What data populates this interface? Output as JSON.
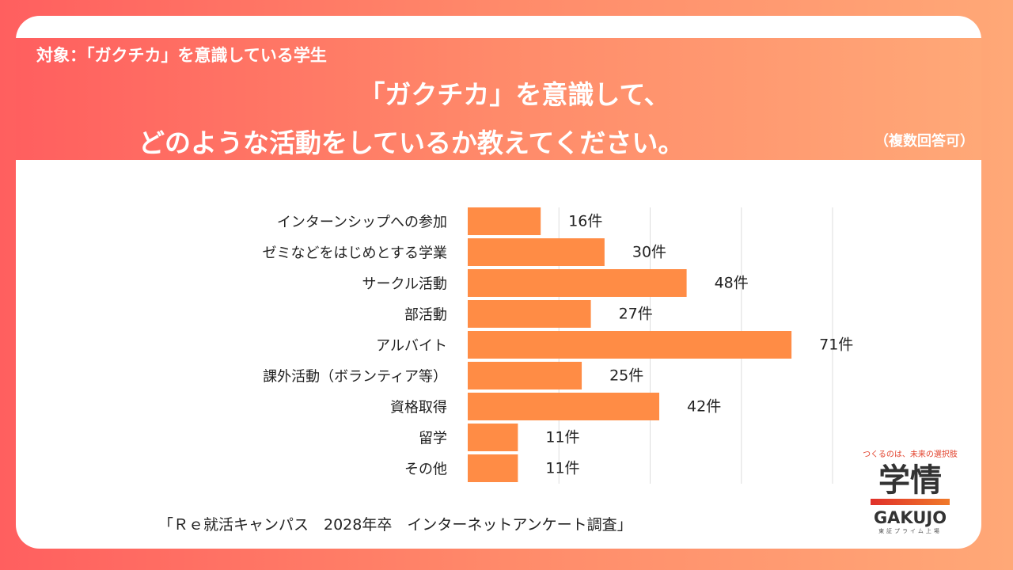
{
  "header": {
    "target": "対象：「ガクチカ」を意識している学生",
    "title_line1": "「ガクチカ」を意識して、",
    "title_line2": "どのような活動をしているか教えてください。",
    "note": "（複数回答可）"
  },
  "source": "「Ｒｅ就活キャンパス　2028年卒　インターネットアンケート調査」",
  "logo": {
    "tagline": "つくるのは、未来の選択肢",
    "kanji": "学情",
    "name": "GAKUJO",
    "sub": "東証プライム上場"
  },
  "colors": {
    "bar": "#ff8c45",
    "grid": "#dddddd"
  },
  "chart_data": {
    "type": "bar",
    "orientation": "horizontal",
    "categories": [
      "インターンシップへの参加",
      "ゼミなどをはじめとする学業",
      "サークル活動",
      "部活動",
      "アルバイト",
      "課外活動（ボランティア等）",
      "資格取得",
      "留学",
      "その他"
    ],
    "values": [
      16,
      30,
      48,
      27,
      71,
      25,
      42,
      11,
      11
    ],
    "value_labels": [
      "16件",
      "30件",
      "48件",
      "27件",
      "71件",
      "25件",
      "42件",
      "11件",
      "11件"
    ],
    "xlim": [
      0,
      80
    ],
    "grid_values": [
      20,
      40,
      60,
      80
    ],
    "unit": "件"
  }
}
